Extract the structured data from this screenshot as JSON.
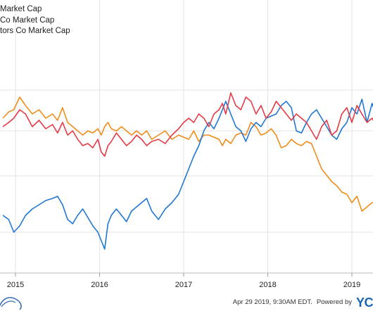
{
  "legend": [
    {
      "text": "Market Cap",
      "color": "#1f77d4"
    },
    {
      "text": "Co Market Cap",
      "color": "#e63946"
    },
    {
      "text": "tors Co Market Cap",
      "color": "#f08c1a"
    }
  ],
  "footer": {
    "timestamp": "Apr 29 2019, 9:30AM EDT.",
    "powered": "Powered by",
    "logo": "YC"
  },
  "chart_data": {
    "type": "line",
    "xlabel": "",
    "ylabel": "",
    "x_ticks": [
      "2015",
      "2016",
      "2017",
      "2018",
      "2019"
    ],
    "xlim": [
      2014.85,
      2019.32
    ],
    "ylim": [
      0,
      100
    ],
    "grid": true,
    "legend_position": "top-left",
    "series": [
      {
        "color": "#1f77d4",
        "x": [
          2014.85,
          2014.92,
          2014.98,
          2015.05,
          2015.12,
          2015.2,
          2015.28,
          2015.36,
          2015.44,
          2015.5,
          2015.56,
          2015.62,
          2015.68,
          2015.74,
          2015.8,
          2015.86,
          2015.92,
          2015.98,
          2016.02,
          2016.06,
          2016.1,
          2016.14,
          2016.2,
          2016.26,
          2016.32,
          2016.38,
          2016.44,
          2016.5,
          2016.56,
          2016.62,
          2016.7,
          2016.78,
          2016.86,
          2016.94,
          2017.0,
          2017.06,
          2017.12,
          2017.18,
          2017.24,
          2017.3,
          2017.36,
          2017.42,
          2017.46,
          2017.5,
          2017.56,
          2017.62,
          2017.68,
          2017.74,
          2017.8,
          2017.86,
          2017.92,
          2017.98,
          2018.04,
          2018.1,
          2018.16,
          2018.22,
          2018.28,
          2018.34,
          2018.4,
          2018.46,
          2018.52,
          2018.58,
          2018.64,
          2018.7,
          2018.76,
          2018.82,
          2018.88,
          2018.94,
          2019.0,
          2019.06,
          2019.12,
          2019.18,
          2019.24,
          2019.32
        ],
        "y": [
          22,
          20,
          14,
          17,
          22,
          25,
          27,
          29,
          30,
          31,
          27,
          20,
          18,
          22,
          25,
          21,
          17,
          14,
          10,
          6,
          18,
          22,
          25,
          22,
          19,
          24,
          26,
          28,
          30,
          24,
          20,
          25,
          28,
          32,
          38,
          44,
          50,
          55,
          62,
          66,
          63,
          68,
          72,
          76,
          70,
          64,
          62,
          57,
          63,
          66,
          64,
          68,
          69,
          70,
          74,
          76,
          73,
          62,
          61,
          66,
          70,
          72,
          68,
          64,
          60,
          58,
          63,
          66,
          73,
          70,
          77,
          66,
          75,
          66
        ]
      },
      {
        "color": "#e63946",
        "x": [
          2014.85,
          2014.92,
          2014.98,
          2015.05,
          2015.12,
          2015.2,
          2015.28,
          2015.36,
          2015.44,
          2015.5,
          2015.56,
          2015.62,
          2015.68,
          2015.74,
          2015.8,
          2015.86,
          2015.92,
          2015.98,
          2016.02,
          2016.06,
          2016.1,
          2016.14,
          2016.2,
          2016.26,
          2016.32,
          2016.38,
          2016.44,
          2016.5,
          2016.56,
          2016.62,
          2016.7,
          2016.78,
          2016.86,
          2016.94,
          2017.0,
          2017.06,
          2017.12,
          2017.18,
          2017.24,
          2017.3,
          2017.36,
          2017.42,
          2017.46,
          2017.5,
          2017.56,
          2017.62,
          2017.68,
          2017.74,
          2017.8,
          2017.86,
          2017.92,
          2017.98,
          2018.04,
          2018.1,
          2018.16,
          2018.22,
          2018.28,
          2018.34,
          2018.4,
          2018.46,
          2018.52,
          2018.58,
          2018.64,
          2018.7,
          2018.76,
          2018.82,
          2018.88,
          2018.94,
          2019.0,
          2019.06,
          2019.12,
          2019.18,
          2019.24,
          2019.32
        ],
        "y": [
          64,
          66,
          68,
          72,
          70,
          64,
          67,
          63,
          65,
          61,
          66,
          60,
          62,
          58,
          55,
          56,
          54,
          58,
          52,
          50,
          55,
          57,
          61,
          58,
          55,
          57,
          60,
          58,
          55,
          57,
          58,
          56,
          60,
          63,
          66,
          68,
          66,
          70,
          68,
          64,
          70,
          72,
          75,
          70,
          80,
          74,
          72,
          78,
          76,
          70,
          74,
          68,
          71,
          76,
          73,
          70,
          67,
          70,
          68,
          66,
          62,
          58,
          64,
          67,
          60,
          62,
          70,
          73,
          66,
          74,
          70,
          66,
          68,
          62
        ]
      },
      {
        "color": "#f08c1a",
        "x": [
          2014.85,
          2014.92,
          2014.98,
          2015.05,
          2015.12,
          2015.2,
          2015.28,
          2015.36,
          2015.44,
          2015.5,
          2015.56,
          2015.62,
          2015.68,
          2015.74,
          2015.8,
          2015.86,
          2015.92,
          2015.98,
          2016.02,
          2016.06,
          2016.1,
          2016.14,
          2016.2,
          2016.26,
          2016.32,
          2016.38,
          2016.44,
          2016.5,
          2016.56,
          2016.62,
          2016.7,
          2016.78,
          2016.86,
          2016.94,
          2017.0,
          2017.06,
          2017.12,
          2017.18,
          2017.24,
          2017.3,
          2017.36,
          2017.42,
          2017.46,
          2017.5,
          2017.56,
          2017.62,
          2017.68,
          2017.74,
          2017.8,
          2017.86,
          2017.92,
          2017.98,
          2018.04,
          2018.1,
          2018.16,
          2018.22,
          2018.28,
          2018.34,
          2018.4,
          2018.46,
          2018.52,
          2018.58,
          2018.64,
          2018.7,
          2018.76,
          2018.82,
          2018.88,
          2018.94,
          2019.0,
          2019.06,
          2019.12,
          2019.18,
          2019.24,
          2019.32
        ],
        "y": [
          68,
          71,
          72,
          78,
          74,
          70,
          72,
          68,
          70,
          67,
          73,
          66,
          64,
          62,
          60,
          62,
          61,
          63,
          60,
          64,
          66,
          63,
          62,
          64,
          62,
          60,
          62,
          60,
          62,
          58,
          60,
          62,
          58,
          60,
          59,
          58,
          62,
          57,
          60,
          60,
          59,
          58,
          55,
          58,
          56,
          60,
          61,
          60,
          66,
          64,
          60,
          61,
          63,
          60,
          54,
          55,
          58,
          56,
          55,
          57,
          56,
          50,
          44,
          41,
          38,
          36,
          33,
          32,
          28,
          31,
          24,
          26,
          28,
          28
        ]
      }
    ]
  }
}
